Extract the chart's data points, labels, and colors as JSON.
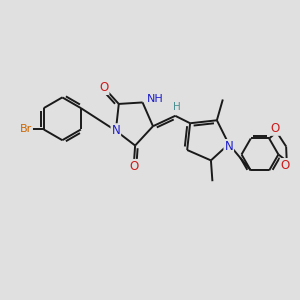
{
  "bg_color": "#e0e0e0",
  "bond_color": "#1a1a1a",
  "bond_width": 1.4,
  "atom_colors": {
    "C": "#1a1a1a",
    "N": "#1c1ccc",
    "O": "#cc1c1c",
    "Br": "#cc6600",
    "H": "#4a9090"
  },
  "font_size": 8.5
}
